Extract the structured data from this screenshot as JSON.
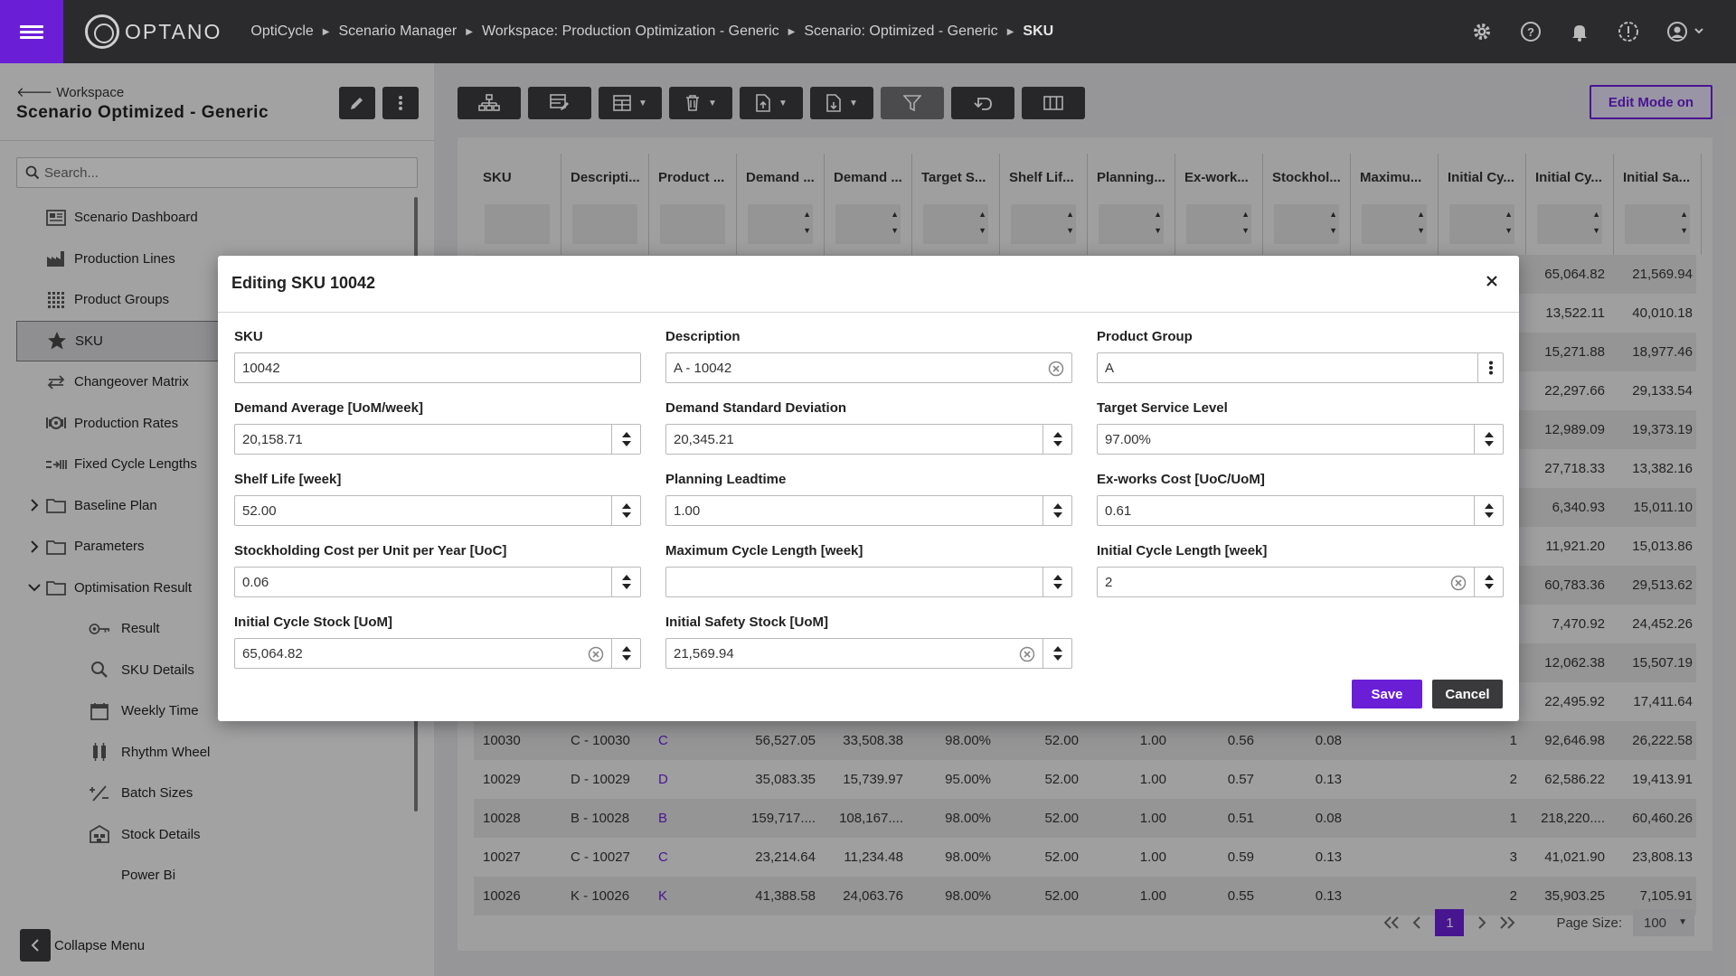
{
  "header": {
    "logo_text": "OPTANO",
    "breadcrumbs": [
      "OptiCycle",
      "Scenario Manager",
      "Workspace: Production Optimization - Generic",
      "Scenario: Optimized - Generic",
      "SKU"
    ],
    "icons": [
      "settings-icon",
      "help-icon",
      "bell-icon",
      "alert-icon",
      "user-icon"
    ]
  },
  "sidebar": {
    "back_label": "Workspace",
    "scenario_title": "Scenario Optimized - Generic",
    "search_placeholder": "Search...",
    "items": [
      {
        "label": "Scenario Dashboard",
        "icon": "dashboard-icon",
        "indent": 0
      },
      {
        "label": "Production Lines",
        "icon": "factory-icon",
        "indent": 0
      },
      {
        "label": "Product Groups",
        "icon": "grid-icon",
        "indent": 0
      },
      {
        "label": "SKU",
        "icon": "star-icon",
        "indent": 0,
        "active": true
      },
      {
        "label": "Changeover Matrix",
        "icon": "swap-icon",
        "indent": 0
      },
      {
        "label": "Production Rates",
        "icon": "rate-icon",
        "indent": 0
      },
      {
        "label": "Fixed Cycle Lengths",
        "icon": "cycle-icon",
        "indent": 0
      },
      {
        "label": "Baseline Plan",
        "icon": "folder-icon",
        "indent": 0,
        "chevron": "right"
      },
      {
        "label": "Parameters",
        "icon": "folder-icon",
        "indent": 0,
        "chevron": "right"
      },
      {
        "label": "Optimisation Result",
        "icon": "folder-icon",
        "indent": 0,
        "chevron": "down"
      },
      {
        "label": "Result",
        "icon": "key-icon",
        "indent": 1
      },
      {
        "label": "SKU Details",
        "icon": "search-icon",
        "indent": 1
      },
      {
        "label": "Weekly Time",
        "icon": "calendar-icon",
        "indent": 1
      },
      {
        "label": "Rhythm Wheel",
        "icon": "bars-icon",
        "indent": 1
      },
      {
        "label": "Batch Sizes",
        "icon": "percent-icon",
        "indent": 1
      },
      {
        "label": "Stock Details",
        "icon": "warehouse-icon",
        "indent": 1
      },
      {
        "label": "Power Bi",
        "icon": "",
        "indent": 1
      }
    ],
    "collapse_label": "Collapse Menu"
  },
  "main": {
    "edit_mode_label": "Edit Mode on",
    "columns": [
      "SKU",
      "Descripti...",
      "Product ...",
      "Demand ...",
      "Demand ...",
      "Target S...",
      "Shelf Lif...",
      "Planning...",
      "Ex-work...",
      "Stockhol...",
      "Maximu...",
      "Initial Cy...",
      "Initial Cy...",
      "Initial Sa..."
    ],
    "rows": [
      [
        "",
        "",
        "",
        "",
        "",
        "",
        "",
        "",
        "",
        "",
        "",
        "",
        "65,064.82",
        "21,569.94"
      ],
      [
        "",
        "",
        "",
        "",
        "",
        "",
        "",
        "",
        "",
        "",
        "",
        "",
        "13,522.11",
        "40,010.18"
      ],
      [
        "",
        "",
        "",
        "",
        "",
        "",
        "",
        "",
        "",
        "",
        "",
        "",
        "15,271.88",
        "18,977.46"
      ],
      [
        "",
        "",
        "",
        "",
        "",
        "",
        "",
        "",
        "",
        "",
        "",
        "",
        "22,297.66",
        "29,133.54"
      ],
      [
        "",
        "",
        "",
        "",
        "",
        "",
        "",
        "",
        "",
        "",
        "",
        "",
        "12,989.09",
        "19,373.19"
      ],
      [
        "",
        "",
        "",
        "",
        "",
        "",
        "",
        "",
        "",
        "",
        "",
        "",
        "27,718.33",
        "13,382.16"
      ],
      [
        "",
        "",
        "",
        "",
        "",
        "",
        "",
        "",
        "",
        "",
        "",
        "",
        "6,340.93",
        "15,011.10"
      ],
      [
        "",
        "",
        "",
        "",
        "",
        "",
        "",
        "",
        "",
        "",
        "",
        "",
        "11,921.20",
        "15,013.86"
      ],
      [
        "",
        "",
        "",
        "",
        "",
        "",
        "",
        "",
        "",
        "",
        "",
        "",
        "60,783.36",
        "29,513.62"
      ],
      [
        "",
        "",
        "",
        "",
        "",
        "",
        "",
        "",
        "",
        "",
        "",
        "",
        "7,470.92",
        "24,452.26"
      ],
      [
        "",
        "",
        "",
        "",
        "",
        "",
        "",
        "",
        "",
        "",
        "",
        "",
        "12,062.38",
        "15,507.19"
      ],
      [
        "",
        "",
        "",
        "",
        "",
        "",
        "",
        "",
        "",
        "",
        "",
        "",
        "22,495.92",
        "17,411.64"
      ],
      [
        "10030",
        "C - 10030",
        "C",
        "56,527.05",
        "33,508.38",
        "98.00%",
        "52.00",
        "1.00",
        "0.56",
        "0.08",
        "",
        "1",
        "92,646.98",
        "26,222.58"
      ],
      [
        "10029",
        "D - 10029",
        "D",
        "35,083.35",
        "15,739.97",
        "95.00%",
        "52.00",
        "1.00",
        "0.57",
        "0.13",
        "",
        "2",
        "62,586.22",
        "19,413.91"
      ],
      [
        "10028",
        "B - 10028",
        "B",
        "159,717....",
        "108,167....",
        "98.00%",
        "52.00",
        "1.00",
        "0.51",
        "0.08",
        "",
        "1",
        "218,220....",
        "60,460.26"
      ],
      [
        "10027",
        "C - 10027",
        "C",
        "23,214.64",
        "11,234.48",
        "98.00%",
        "52.00",
        "1.00",
        "0.59",
        "0.13",
        "",
        "3",
        "41,021.90",
        "23,808.13"
      ],
      [
        "10026",
        "K - 10026",
        "K",
        "41,388.58",
        "24,063.76",
        "98.00%",
        "52.00",
        "1.00",
        "0.55",
        "0.13",
        "",
        "2",
        "35,903.25",
        "7,105.91"
      ]
    ],
    "pager": {
      "current_page": "1",
      "page_size_label": "Page Size:",
      "page_size": "100"
    }
  },
  "modal": {
    "title": "Editing SKU 10042",
    "fields": [
      {
        "label": "SKU",
        "value": "10042",
        "type": "text"
      },
      {
        "label": "Description",
        "value": "A - 10042",
        "type": "text-clear"
      },
      {
        "label": "Product Group",
        "value": "A",
        "type": "select"
      },
      {
        "label": "Demand Average [UoM/week]",
        "value": "20,158.71",
        "type": "number"
      },
      {
        "label": "Demand Standard Deviation",
        "value": "20,345.21",
        "type": "number"
      },
      {
        "label": "Target Service Level",
        "value": "97.00%",
        "type": "number"
      },
      {
        "label": "Shelf Life [week]",
        "value": "52.00",
        "type": "number"
      },
      {
        "label": "Planning Leadtime",
        "value": "1.00",
        "type": "number"
      },
      {
        "label": "Ex-works Cost [UoC/UoM]",
        "value": "0.61",
        "type": "number"
      },
      {
        "label": "Stockholding Cost per Unit per Year [UoC]",
        "value": "0.06",
        "type": "number"
      },
      {
        "label": "Maximum Cycle Length [week]",
        "value": "",
        "type": "number"
      },
      {
        "label": "Initial Cycle Length [week]",
        "value": "2",
        "type": "number-clear"
      },
      {
        "label": "Initial Cycle Stock [UoM]",
        "value": "65,064.82",
        "type": "number-clear"
      },
      {
        "label": "Initial Safety Stock [UoM]",
        "value": "21,569.94",
        "type": "number-clear"
      }
    ],
    "save_label": "Save",
    "cancel_label": "Cancel"
  },
  "colors": {
    "accent": "#6a1fd6",
    "dark": "#2b2b2d",
    "button": "#3a3a3d"
  }
}
